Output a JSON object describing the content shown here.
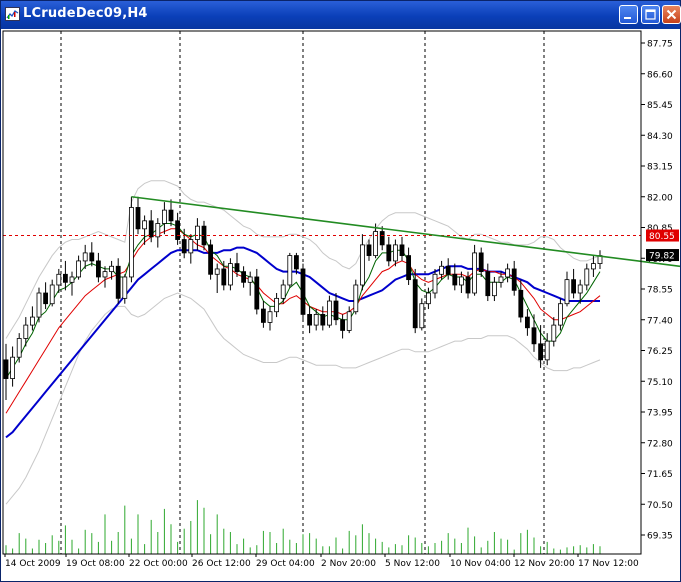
{
  "window": {
    "title": "LCrudeDec09,H4",
    "buttons": {
      "minimize": "minimize",
      "maximize": "maximize",
      "close": "close"
    }
  },
  "chart_data": {
    "type": "candlestick",
    "symbol": "LCrudeDec09",
    "timeframe": "H4",
    "ylim": [
      69.35,
      88.0
    ],
    "grid": "vertical-dotted-separators",
    "price_ticks": [
      "87.75",
      "86.60",
      "85.45",
      "84.30",
      "83.15",
      "82.00",
      "80.85",
      "79.70",
      "78.55",
      "77.40",
      "76.25",
      "75.10",
      "73.95",
      "72.80",
      "71.65",
      "70.50",
      "69.35"
    ],
    "date_ticks": [
      "14 Oct 2009",
      "19 Oct 08:00",
      "22 Oct 00:00",
      "26 Oct 12:00",
      "29 Oct 04:00",
      "2 Nov 20:00",
      "5 Nov 12:00",
      "10 Nov 04:00",
      "12 Nov 20:00",
      "17 Nov 12:00"
    ],
    "current_price": "79.82",
    "horizontal_line": "80.55",
    "candles": [
      [
        75.9,
        76.5,
        74.4,
        75.2
      ],
      [
        75.2,
        76.4,
        74.9,
        76.0
      ],
      [
        76.0,
        76.9,
        75.8,
        76.7
      ],
      [
        76.7,
        77.5,
        76.4,
        77.2
      ],
      [
        77.2,
        77.9,
        77.0,
        77.5
      ],
      [
        77.5,
        78.6,
        77.3,
        78.4
      ],
      [
        78.4,
        78.8,
        77.8,
        78.0
      ],
      [
        78.0,
        78.9,
        77.9,
        78.7
      ],
      [
        78.7,
        79.3,
        78.4,
        79.1
      ],
      [
        79.1,
        79.6,
        78.5,
        78.8
      ],
      [
        78.8,
        79.2,
        78.3,
        79.0
      ],
      [
        79.0,
        79.8,
        78.9,
        79.6
      ],
      [
        79.6,
        80.2,
        79.3,
        79.9
      ],
      [
        79.9,
        80.3,
        79.4,
        79.6
      ],
      [
        79.6,
        79.9,
        78.8,
        79.0
      ],
      [
        79.0,
        79.4,
        78.6,
        79.2
      ],
      [
        79.2,
        79.6,
        78.9,
        79.4
      ],
      [
        79.4,
        79.7,
        78.0,
        78.2
      ],
      [
        78.2,
        79.1,
        78.0,
        79.0
      ],
      [
        79.0,
        82.0,
        78.8,
        81.6
      ],
      [
        81.6,
        82.0,
        80.6,
        80.8
      ],
      [
        80.8,
        81.3,
        80.2,
        81.1
      ],
      [
        81.1,
        81.5,
        80.3,
        80.5
      ],
      [
        80.5,
        81.2,
        80.1,
        81.0
      ],
      [
        81.0,
        81.8,
        80.6,
        81.5
      ],
      [
        81.5,
        81.9,
        80.9,
        81.1
      ],
      [
        81.1,
        81.4,
        80.2,
        80.4
      ],
      [
        80.4,
        80.8,
        79.7,
        79.9
      ],
      [
        79.9,
        80.6,
        79.5,
        80.4
      ],
      [
        80.4,
        81.2,
        80.0,
        80.9
      ],
      [
        80.9,
        81.1,
        80.0,
        80.2
      ],
      [
        80.2,
        80.4,
        78.9,
        79.1
      ],
      [
        79.1,
        79.5,
        78.4,
        79.3
      ],
      [
        79.3,
        79.6,
        78.5,
        78.7
      ],
      [
        78.7,
        79.7,
        78.5,
        79.5
      ],
      [
        79.5,
        79.9,
        79.0,
        79.2
      ],
      [
        79.2,
        79.4,
        78.6,
        78.8
      ],
      [
        78.8,
        79.2,
        78.3,
        79.0
      ],
      [
        79.0,
        79.3,
        77.6,
        77.8
      ],
      [
        77.8,
        78.1,
        77.1,
        77.3
      ],
      [
        77.3,
        77.9,
        77.0,
        77.7
      ],
      [
        77.7,
        78.4,
        77.5,
        78.2
      ],
      [
        78.2,
        78.9,
        78.0,
        78.7
      ],
      [
        78.7,
        79.9,
        78.6,
        79.8
      ],
      [
        79.8,
        79.9,
        79.1,
        79.3
      ],
      [
        79.3,
        79.5,
        77.4,
        77.6
      ],
      [
        77.6,
        77.9,
        76.9,
        77.2
      ],
      [
        77.2,
        77.8,
        77.0,
        77.6
      ],
      [
        77.6,
        77.9,
        77.0,
        77.2
      ],
      [
        77.2,
        78.3,
        77.1,
        78.1
      ],
      [
        78.1,
        78.4,
        77.2,
        77.4
      ],
      [
        77.4,
        77.6,
        76.7,
        77.0
      ],
      [
        77.0,
        77.9,
        76.9,
        77.7
      ],
      [
        77.7,
        78.9,
        77.6,
        78.7
      ],
      [
        78.7,
        80.6,
        78.5,
        80.2
      ],
      [
        80.2,
        80.4,
        79.6,
        79.8
      ],
      [
        79.8,
        81.0,
        79.7,
        80.7
      ],
      [
        80.7,
        80.9,
        80.0,
        80.2
      ],
      [
        80.2,
        80.5,
        79.4,
        79.6
      ],
      [
        79.6,
        80.4,
        79.4,
        80.2
      ],
      [
        80.2,
        80.5,
        79.6,
        79.8
      ],
      [
        79.8,
        80.1,
        78.7,
        78.9
      ],
      [
        78.9,
        79.3,
        76.9,
        77.1
      ],
      [
        77.1,
        78.2,
        77.0,
        78.0
      ],
      [
        78.0,
        78.6,
        77.8,
        78.4
      ],
      [
        78.4,
        79.3,
        78.2,
        79.1
      ],
      [
        79.1,
        79.6,
        78.9,
        79.4
      ],
      [
        79.4,
        79.7,
        78.9,
        79.1
      ],
      [
        79.1,
        79.5,
        78.5,
        78.7
      ],
      [
        78.7,
        79.2,
        78.4,
        79.0
      ],
      [
        79.0,
        79.2,
        78.2,
        78.4
      ],
      [
        78.4,
        80.2,
        78.3,
        79.9
      ],
      [
        79.9,
        80.1,
        79.0,
        79.2
      ],
      [
        79.2,
        79.5,
        78.1,
        78.3
      ],
      [
        78.3,
        79.0,
        78.1,
        78.8
      ],
      [
        78.8,
        79.2,
        78.6,
        79.0
      ],
      [
        79.0,
        79.5,
        78.8,
        79.3
      ],
      [
        79.3,
        79.6,
        78.3,
        78.5
      ],
      [
        78.5,
        78.9,
        77.3,
        77.5
      ],
      [
        77.5,
        77.8,
        76.8,
        77.1
      ],
      [
        77.1,
        77.6,
        76.2,
        76.5
      ],
      [
        76.5,
        77.2,
        75.6,
        75.9
      ],
      [
        75.9,
        76.9,
        75.7,
        76.6
      ],
      [
        76.6,
        77.5,
        76.4,
        77.2
      ],
      [
        77.2,
        78.2,
        77.0,
        78.0
      ],
      [
        78.0,
        79.2,
        77.9,
        78.9
      ],
      [
        78.9,
        79.3,
        78.2,
        78.4
      ],
      [
        78.4,
        78.9,
        78.0,
        78.7
      ],
      [
        78.7,
        79.5,
        78.5,
        79.3
      ],
      [
        79.3,
        79.8,
        79.0,
        79.5
      ],
      [
        79.5,
        80.0,
        79.3,
        79.8
      ]
    ],
    "volume": [
      0.08,
      0.05,
      0.19,
      0.14,
      0.05,
      0.13,
      0.1,
      0.17,
      0.12,
      0.26,
      0.13,
      0.05,
      0.22,
      0.19,
      0.11,
      0.36,
      0.12,
      0.2,
      0.44,
      0.14,
      0.36,
      0.09,
      0.31,
      0.2,
      0.41,
      0.27,
      0.11,
      0.23,
      0.3,
      0.49,
      0.42,
      0.18,
      0.36,
      0.23,
      0.2,
      0.09,
      0.14,
      0.06,
      0.08,
      0.21,
      0.2,
      0.1,
      0.23,
      0.13,
      0.1,
      0.18,
      0.19,
      0.14,
      0.07,
      0.07,
      0.15,
      0.05,
      0.21,
      0.17,
      0.27,
      0.19,
      0.14,
      0.11,
      0.06,
      0.09,
      0.08,
      0.17,
      0.15,
      0.1,
      0.07,
      0.1,
      0.12,
      0.19,
      0.14,
      0.1,
      0.24,
      0.16,
      0.06,
      0.12,
      0.2,
      0.14,
      0.13,
      0.04,
      0.19,
      0.22,
      0.15,
      0.07,
      0.11,
      0.05,
      0.04,
      0.06,
      0.07,
      0.08,
      0.06,
      0.09,
      0.07
    ],
    "indicators": [
      {
        "kind": "moving-average",
        "color": "#0000cc",
        "width": 2,
        "values": [
          73.0,
          73.2,
          73.5,
          73.8,
          74.1,
          74.4,
          74.7,
          75.0,
          75.3,
          75.6,
          75.9,
          76.2,
          76.5,
          76.8,
          77.1,
          77.4,
          77.7,
          78.0,
          78.3,
          78.6,
          78.9,
          79.1,
          79.3,
          79.5,
          79.7,
          79.9,
          80.0,
          80.0,
          80.0,
          80.0,
          79.9,
          79.9,
          79.9,
          80.0,
          80.0,
          80.1,
          80.1,
          80.0,
          79.9,
          79.7,
          79.5,
          79.3,
          79.2,
          79.2,
          79.2,
          79.1,
          79.0,
          78.8,
          78.6,
          78.4,
          78.3,
          78.2,
          78.1,
          78.1,
          78.2,
          78.3,
          78.4,
          78.5,
          78.7,
          78.9,
          79.0,
          79.1,
          79.1,
          79.1,
          79.1,
          79.2,
          79.3,
          79.4,
          79.4,
          79.4,
          79.3,
          79.3,
          79.3,
          79.2,
          79.2,
          79.2,
          79.1,
          79.0,
          78.9,
          78.8,
          78.6,
          78.5,
          78.4,
          78.3,
          78.2,
          78.1,
          78.1,
          78.1,
          78.1,
          78.1,
          78.1
        ]
      },
      {
        "kind": "moving-average",
        "color": "#e00000",
        "width": 1,
        "values": [
          73.9,
          74.3,
          74.7,
          75.1,
          75.5,
          75.9,
          76.3,
          76.7,
          77.1,
          77.4,
          77.7,
          78.0,
          78.3,
          78.5,
          78.7,
          78.9,
          79.0,
          79.1,
          79.2,
          79.6,
          80.0,
          80.3,
          80.5,
          80.6,
          80.7,
          80.8,
          80.8,
          80.6,
          80.4,
          80.2,
          80.1,
          79.8,
          79.6,
          79.4,
          79.3,
          79.1,
          79.0,
          78.9,
          78.7,
          78.4,
          78.2,
          78.0,
          78.0,
          78.2,
          78.3,
          78.1,
          77.9,
          77.8,
          77.7,
          77.7,
          77.7,
          77.6,
          77.7,
          77.9,
          78.3,
          78.6,
          78.9,
          79.2,
          79.3,
          79.5,
          79.6,
          79.5,
          79.1,
          78.9,
          78.8,
          78.9,
          79.0,
          79.1,
          79.1,
          79.1,
          79.0,
          79.2,
          79.3,
          79.2,
          79.2,
          79.1,
          79.1,
          79.0,
          78.8,
          78.5,
          78.2,
          77.8,
          77.6,
          77.4,
          77.4,
          77.5,
          77.6,
          77.7,
          77.9,
          78.1,
          78.3
        ]
      },
      {
        "kind": "moving-average",
        "color": "#006400",
        "width": 1,
        "values": [
          75.2,
          75.6,
          76.0,
          76.5,
          76.9,
          77.5,
          77.7,
          78.1,
          78.5,
          78.6,
          78.8,
          79.1,
          79.4,
          79.5,
          79.4,
          79.3,
          79.3,
          79.0,
          79.0,
          79.8,
          80.2,
          80.5,
          80.6,
          80.8,
          81.0,
          81.0,
          80.9,
          80.6,
          80.5,
          80.6,
          80.5,
          80.0,
          79.8,
          79.4,
          79.4,
          79.3,
          79.1,
          79.0,
          78.6,
          78.1,
          77.9,
          77.9,
          78.1,
          78.6,
          78.8,
          78.4,
          77.9,
          77.7,
          77.5,
          77.6,
          77.5,
          77.4,
          77.4,
          77.8,
          78.6,
          79.0,
          79.6,
          79.9,
          79.9,
          80.0,
          80.0,
          79.6,
          78.8,
          78.5,
          78.4,
          78.6,
          78.9,
          79.1,
          79.0,
          79.0,
          78.8,
          79.1,
          79.1,
          78.8,
          78.8,
          78.8,
          79.0,
          78.9,
          78.4,
          77.9,
          77.4,
          76.9,
          76.6,
          76.6,
          76.9,
          77.5,
          77.8,
          78.1,
          78.4,
          78.8,
          79.2
        ]
      }
    ],
    "bands": {
      "color": "#c8c8c8",
      "upper": [
        76.7,
        77.1,
        77.5,
        78.0,
        78.5,
        79.0,
        79.4,
        79.8,
        80.1,
        80.3,
        80.4,
        80.4,
        80.5,
        80.6,
        80.7,
        80.6,
        80.5,
        80.4,
        80.3,
        81.8,
        82.3,
        82.5,
        82.6,
        82.6,
        82.6,
        82.5,
        82.4,
        82.1,
        81.9,
        81.8,
        81.8,
        81.7,
        81.6,
        81.5,
        81.3,
        81.1,
        80.9,
        80.8,
        80.6,
        80.5,
        80.5,
        80.5,
        80.5,
        80.6,
        80.6,
        80.5,
        80.4,
        80.2,
        79.9,
        79.7,
        79.6,
        79.4,
        79.3,
        79.5,
        80.0,
        80.4,
        80.8,
        81.1,
        81.3,
        81.4,
        81.4,
        81.4,
        81.4,
        81.3,
        81.2,
        81.1,
        81.0,
        80.9,
        80.7,
        80.5,
        80.4,
        80.6,
        80.6,
        80.5,
        80.4,
        80.3,
        80.3,
        80.2,
        80.2,
        80.2,
        80.3,
        80.5,
        80.5,
        80.4,
        80.1,
        79.9,
        79.7,
        79.6,
        79.6,
        79.7,
        79.8
      ],
      "lower": [
        70.5,
        70.8,
        71.1,
        71.5,
        72.0,
        72.5,
        73.1,
        73.7,
        74.3,
        74.9,
        75.5,
        76.1,
        76.6,
        77.0,
        77.3,
        77.6,
        77.8,
        77.9,
        77.9,
        77.6,
        77.5,
        77.6,
        77.8,
        78.0,
        78.2,
        78.3,
        78.4,
        78.3,
        78.2,
        78.0,
        77.8,
        77.4,
        77.0,
        76.7,
        76.5,
        76.3,
        76.1,
        76.0,
        75.9,
        75.8,
        75.8,
        75.8,
        75.9,
        76.0,
        76.0,
        75.9,
        75.8,
        75.7,
        75.7,
        75.7,
        75.7,
        75.6,
        75.6,
        75.6,
        75.7,
        75.8,
        75.9,
        76.0,
        76.1,
        76.2,
        76.3,
        76.3,
        76.2,
        76.2,
        76.2,
        76.3,
        76.4,
        76.5,
        76.6,
        76.6,
        76.7,
        76.7,
        76.7,
        76.8,
        76.8,
        76.8,
        76.8,
        76.7,
        76.5,
        76.3,
        76.0,
        75.8,
        75.6,
        75.5,
        75.5,
        75.5,
        75.6,
        75.6,
        75.7,
        75.8,
        75.9
      ]
    },
    "trendline": {
      "color": "#228b22",
      "from": [
        19,
        82.0
      ],
      "to": [
        96,
        79.4
      ]
    }
  }
}
